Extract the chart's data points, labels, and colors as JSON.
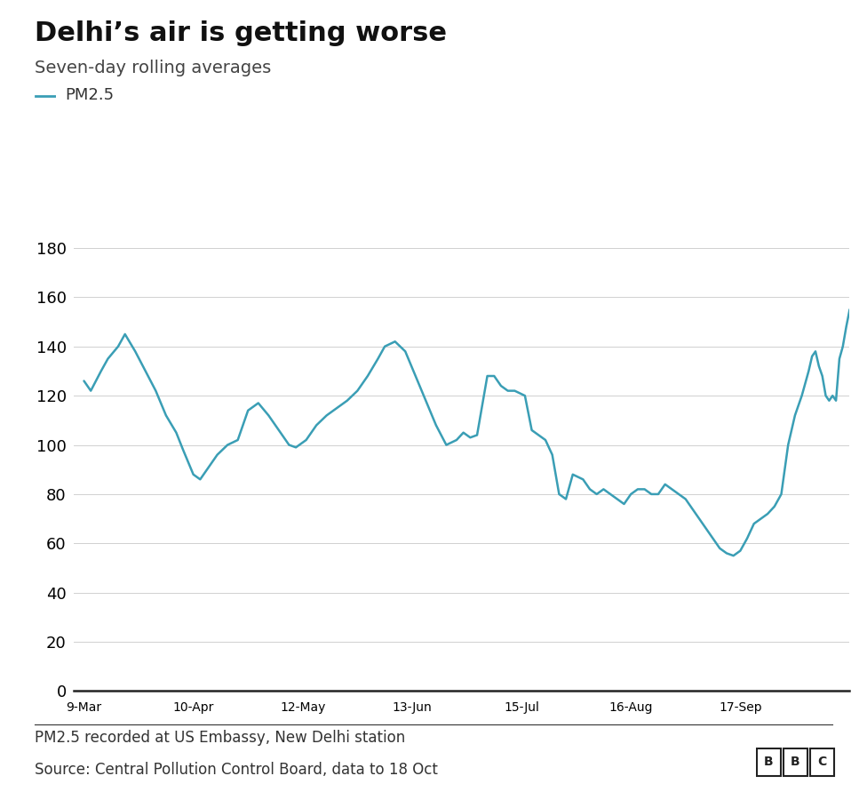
{
  "title": "Delhi’s air is getting worse",
  "subtitle": "Seven-day rolling averages",
  "legend_label": "PM2.5",
  "note1": "PM2.5 recorded at US Embassy, New Delhi station",
  "note2": "Source: Central Pollution Control Board, data to 18 Oct",
  "line_color": "#3a9eb5",
  "background_color": "#ffffff",
  "title_fontsize": 22,
  "subtitle_fontsize": 14,
  "legend_fontsize": 13,
  "note_fontsize": 12,
  "yticks": [
    0,
    20,
    40,
    60,
    80,
    100,
    120,
    140,
    160,
    180
  ],
  "ylim": [
    -2,
    193
  ],
  "xtick_labels": [
    "9-Mar",
    "10-Apr",
    "12-May",
    "13-Jun",
    "15-Jul",
    "16-Aug",
    "17-Sep"
  ],
  "xtick_positions": [
    0,
    32,
    64,
    96,
    128,
    160,
    192
  ],
  "xlim": [
    -3,
    224
  ],
  "dates_values": [
    [
      0,
      126
    ],
    [
      2,
      122
    ],
    [
      5,
      130
    ],
    [
      7,
      135
    ],
    [
      10,
      140
    ],
    [
      12,
      145
    ],
    [
      15,
      138
    ],
    [
      18,
      130
    ],
    [
      21,
      122
    ],
    [
      24,
      112
    ],
    [
      27,
      105
    ],
    [
      29,
      98
    ],
    [
      32,
      88
    ],
    [
      34,
      86
    ],
    [
      36,
      90
    ],
    [
      39,
      96
    ],
    [
      42,
      100
    ],
    [
      45,
      102
    ],
    [
      48,
      114
    ],
    [
      51,
      117
    ],
    [
      54,
      112
    ],
    [
      57,
      106
    ],
    [
      60,
      100
    ],
    [
      62,
      99
    ],
    [
      65,
      102
    ],
    [
      68,
      108
    ],
    [
      71,
      112
    ],
    [
      74,
      115
    ],
    [
      77,
      118
    ],
    [
      80,
      122
    ],
    [
      83,
      128
    ],
    [
      86,
      135
    ],
    [
      88,
      140
    ],
    [
      91,
      142
    ],
    [
      94,
      138
    ],
    [
      97,
      128
    ],
    [
      100,
      118
    ],
    [
      103,
      108
    ],
    [
      106,
      100
    ],
    [
      109,
      102
    ],
    [
      111,
      105
    ],
    [
      113,
      103
    ],
    [
      115,
      104
    ],
    [
      118,
      128
    ],
    [
      120,
      128
    ],
    [
      122,
      124
    ],
    [
      124,
      122
    ],
    [
      126,
      122
    ],
    [
      129,
      120
    ],
    [
      131,
      106
    ],
    [
      133,
      104
    ],
    [
      135,
      102
    ],
    [
      137,
      96
    ],
    [
      139,
      80
    ],
    [
      141,
      78
    ],
    [
      143,
      88
    ],
    [
      146,
      86
    ],
    [
      148,
      82
    ],
    [
      150,
      80
    ],
    [
      152,
      82
    ],
    [
      154,
      80
    ],
    [
      156,
      78
    ],
    [
      158,
      76
    ],
    [
      160,
      80
    ],
    [
      162,
      82
    ],
    [
      164,
      82
    ],
    [
      166,
      80
    ],
    [
      168,
      80
    ],
    [
      170,
      84
    ],
    [
      172,
      82
    ],
    [
      174,
      80
    ],
    [
      176,
      78
    ],
    [
      178,
      74
    ],
    [
      180,
      70
    ],
    [
      182,
      66
    ],
    [
      184,
      62
    ],
    [
      186,
      58
    ],
    [
      188,
      56
    ],
    [
      190,
      55
    ],
    [
      192,
      57
    ],
    [
      194,
      62
    ],
    [
      196,
      68
    ],
    [
      198,
      70
    ],
    [
      200,
      72
    ],
    [
      202,
      75
    ],
    [
      204,
      80
    ],
    [
      206,
      100
    ],
    [
      208,
      112
    ],
    [
      210,
      120
    ],
    [
      212,
      130
    ],
    [
      213,
      136
    ],
    [
      214,
      138
    ],
    [
      215,
      132
    ],
    [
      216,
      128
    ],
    [
      217,
      120
    ],
    [
      218,
      118
    ],
    [
      219,
      120
    ],
    [
      220,
      118
    ],
    [
      221,
      135
    ],
    [
      222,
      140
    ],
    [
      223,
      148
    ],
    [
      224,
      155
    ]
  ]
}
